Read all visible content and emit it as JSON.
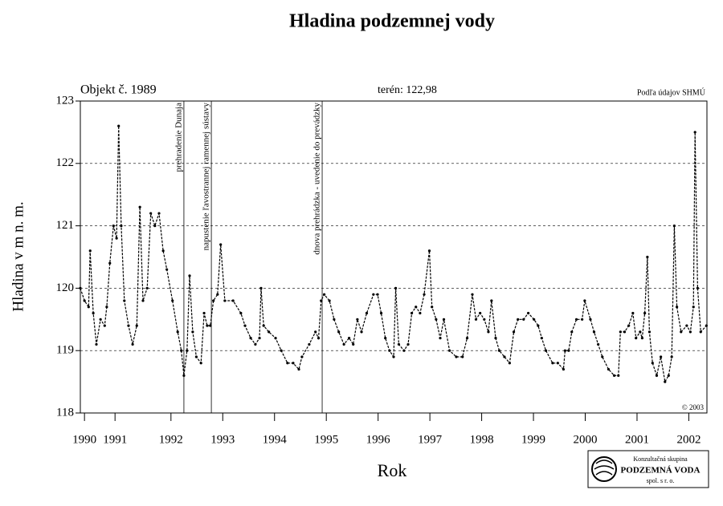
{
  "chart_data": {
    "type": "line",
    "title": "Hladina podzemnej vody",
    "object_label": "Objekt č. 1989",
    "terrain_label": "terén: 122,98",
    "source_label": "Podľa údajov SHMÚ",
    "copyright": "© 2003",
    "y_label": "Hladina v m n. m.",
    "x_label": "Rok",
    "logo": {
      "line1": "Konzultačná skupina",
      "line2": "PODZEMNÁ VODA",
      "line3": "spol. s r. o."
    },
    "xlim": [
      1990.75,
      2002.85
    ],
    "ylim": [
      118,
      123
    ],
    "yticks": [
      118,
      119,
      120,
      121,
      122,
      123
    ],
    "xticks": [
      {
        "value": 1990.83,
        "label": "1990"
      },
      {
        "value": 1991.42,
        "label": "1991"
      },
      {
        "value": 1992.5,
        "label": "1992"
      },
      {
        "value": 1993.5,
        "label": "1993"
      },
      {
        "value": 1994.5,
        "label": "1994"
      },
      {
        "value": 1995.5,
        "label": "1995"
      },
      {
        "value": 1996.5,
        "label": "1996"
      },
      {
        "value": 1997.5,
        "label": "1997"
      },
      {
        "value": 1998.5,
        "label": "1998"
      },
      {
        "value": 1999.5,
        "label": "1999"
      },
      {
        "value": 2000.5,
        "label": "2000"
      },
      {
        "value": 2001.5,
        "label": "2001"
      },
      {
        "value": 2002.5,
        "label": "2002"
      }
    ],
    "grid": true,
    "annotations": [
      {
        "x": 1992.75,
        "label": "prehradenie Dunaja"
      },
      {
        "x": 1993.28,
        "label": "napustenie ľavostrannej ramennej sústavy"
      },
      {
        "x": 1995.42,
        "label": "dnova prehrádzka - uvedenie do prevádzky"
      }
    ],
    "x": [
      1990.75,
      1990.83,
      1990.91,
      1990.94,
      1991.0,
      1991.06,
      1991.14,
      1991.22,
      1991.26,
      1991.32,
      1991.39,
      1991.45,
      1991.49,
      1991.54,
      1991.6,
      1991.68,
      1991.76,
      1991.84,
      1991.9,
      1991.96,
      1992.04,
      1992.11,
      1992.19,
      1992.27,
      1992.35,
      1992.42,
      1992.53,
      1992.63,
      1992.7,
      1992.75,
      1992.81,
      1992.86,
      1992.92,
      1992.99,
      1993.08,
      1993.14,
      1993.2,
      1993.26,
      1993.32,
      1993.4,
      1993.46,
      1993.54,
      1993.7,
      1993.85,
      1993.93,
      1994.04,
      1994.13,
      1994.21,
      1994.24,
      1994.29,
      1994.39,
      1994.52,
      1994.63,
      1994.75,
      1994.86,
      1994.97,
      1995.03,
      1995.17,
      1995.29,
      1995.35,
      1995.4,
      1995.46,
      1995.56,
      1995.65,
      1995.74,
      1995.84,
      1995.94,
      1996.02,
      1996.1,
      1996.18,
      1996.28,
      1996.41,
      1996.49,
      1996.56,
      1996.64,
      1996.72,
      1996.8,
      1996.84,
      1996.9,
      1997.0,
      1997.08,
      1997.15,
      1997.23,
      1997.31,
      1997.39,
      1997.49,
      1997.54,
      1997.62,
      1997.7,
      1997.77,
      1997.88,
      1998.01,
      1998.13,
      1998.22,
      1998.32,
      1998.39,
      1998.47,
      1998.55,
      1998.63,
      1998.69,
      1998.77,
      1998.84,
      1998.94,
      1999.04,
      1999.12,
      1999.2,
      1999.31,
      1999.4,
      1999.51,
      1999.59,
      1999.66,
      1999.74,
      1999.87,
      1999.97,
      2000.08,
      2000.11,
      2000.18,
      2000.24,
      2000.33,
      2000.44,
      2000.49,
      2000.6,
      2000.67,
      2000.75,
      2000.83,
      2000.95,
      2001.06,
      2001.14,
      2001.18,
      2001.26,
      2001.34,
      2001.42,
      2001.48,
      2001.56,
      2001.6,
      2001.65,
      2001.7,
      2001.74,
      2001.8,
      2001.88,
      2001.96,
      2002.04,
      2002.11,
      2002.17,
      2002.22,
      2002.27,
      2002.35,
      2002.46,
      2002.53,
      2002.59,
      2002.62,
      2002.67,
      2002.73,
      2002.84
    ],
    "series": [
      {
        "color": "#000000",
        "values": [
          120.0,
          119.8,
          119.7,
          120.6,
          119.6,
          119.1,
          119.5,
          119.4,
          119.7,
          120.4,
          121.0,
          120.8,
          122.6,
          121.0,
          119.8,
          119.4,
          119.1,
          119.4,
          121.3,
          119.8,
          120.0,
          121.2,
          121.0,
          121.2,
          120.6,
          120.3,
          119.8,
          119.3,
          119.0,
          118.6,
          119.0,
          120.2,
          119.3,
          118.9,
          118.8,
          119.6,
          119.4,
          119.4,
          119.8,
          119.9,
          120.7,
          119.8,
          119.8,
          119.6,
          119.4,
          119.2,
          119.1,
          119.2,
          120.0,
          119.4,
          119.3,
          119.2,
          119.0,
          118.8,
          118.8,
          118.7,
          118.9,
          119.1,
          119.3,
          119.2,
          119.8,
          119.9,
          119.8,
          119.5,
          119.3,
          119.1,
          119.2,
          119.1,
          119.5,
          119.3,
          119.6,
          119.9,
          119.9,
          119.6,
          119.2,
          119.0,
          118.9,
          120.0,
          119.1,
          119.0,
          119.1,
          119.6,
          119.7,
          119.6,
          119.9,
          120.6,
          119.7,
          119.5,
          119.2,
          119.5,
          119.0,
          118.9,
          118.9,
          119.2,
          119.9,
          119.5,
          119.6,
          119.5,
          119.3,
          119.8,
          119.2,
          119.0,
          118.9,
          118.8,
          119.3,
          119.5,
          119.5,
          119.6,
          119.5,
          119.4,
          119.2,
          119.0,
          118.8,
          118.8,
          118.7,
          119.0,
          119.0,
          119.3,
          119.5,
          119.5,
          119.8,
          119.5,
          119.3,
          119.1,
          118.9,
          118.7,
          118.6,
          118.6,
          119.3,
          119.3,
          119.4,
          119.6,
          119.2,
          119.3,
          119.2,
          119.6,
          120.5,
          119.3,
          118.8,
          118.6,
          118.9,
          118.5,
          118.6,
          118.9,
          121.0,
          119.7,
          119.3,
          119.4,
          119.3,
          119.7,
          122.5,
          120.0,
          119.3,
          119.4
        ]
      }
    ]
  }
}
